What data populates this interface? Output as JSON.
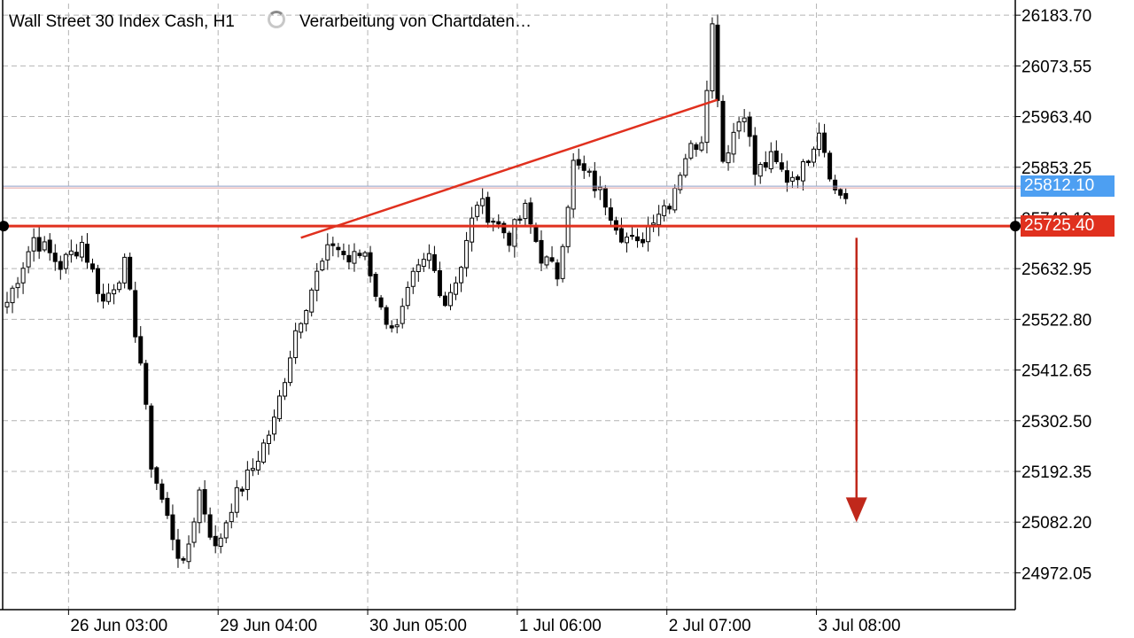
{
  "header": {
    "title": "Wall Street 30 Index Cash, H1",
    "status": "Verarbeitung von Chartdaten…",
    "spinner_icon": "loading-spinner-icon"
  },
  "chart_data": {
    "type": "candlestick",
    "symbol": "Wall Street 30 Index Cash",
    "timeframe": "H1",
    "y_ticks": [
      "26183.70",
      "26073.55",
      "25963.40",
      "25853.25",
      "25743.10",
      "25632.95",
      "25522.80",
      "25412.65",
      "25302.50",
      "25192.35",
      "25082.20",
      "24972.05"
    ],
    "ylim": [
      24892,
      26209
    ],
    "x_ticks": [
      "26 Jun 03:00",
      "29 Jun 04:00",
      "30 Jun 05:00",
      "1 Jul 06:00",
      "2 Jul 07:00",
      "3 Jul 08:00"
    ],
    "x_tick_bar_index": [
      12,
      40,
      68,
      96,
      124,
      152
    ],
    "bar_count": 158,
    "current_price": {
      "label": "25812.10",
      "value": 25812.1,
      "color": "#4d9ff2"
    },
    "horizontal_level": {
      "label": "25725.40",
      "value": 25725.4,
      "color": "#e0301e"
    },
    "trendline": {
      "from": {
        "bar": 55,
        "price": 25700
      },
      "to": {
        "bar": 133,
        "price": 26000
      },
      "color": "#e0301e"
    },
    "projection_arrow": {
      "bar": 159,
      "from": 25700,
      "to": 25082,
      "color": "#c0281b"
    },
    "anchors": [
      {
        "t": 0,
        "p": 25560
      },
      {
        "t": 5,
        "p": 25700
      },
      {
        "t": 10,
        "p": 25640
      },
      {
        "t": 14,
        "p": 25690
      },
      {
        "t": 18,
        "p": 25560
      },
      {
        "t": 22,
        "p": 25640
      },
      {
        "t": 25,
        "p": 25430
      },
      {
        "t": 27,
        "p": 25210
      },
      {
        "t": 30,
        "p": 25090
      },
      {
        "t": 33,
        "p": 24980
      },
      {
        "t": 36,
        "p": 25150
      },
      {
        "t": 39,
        "p": 25020
      },
      {
        "t": 42,
        "p": 25120
      },
      {
        "t": 46,
        "p": 25200
      },
      {
        "t": 50,
        "p": 25300
      },
      {
        "t": 54,
        "p": 25500
      },
      {
        "t": 58,
        "p": 25620
      },
      {
        "t": 61,
        "p": 25690
      },
      {
        "t": 64,
        "p": 25650
      },
      {
        "t": 67,
        "p": 25670
      },
      {
        "t": 70,
        "p": 25540
      },
      {
        "t": 73,
        "p": 25500
      },
      {
        "t": 76,
        "p": 25610
      },
      {
        "t": 79,
        "p": 25660
      },
      {
        "t": 82,
        "p": 25560
      },
      {
        "t": 85,
        "p": 25640
      },
      {
        "t": 88,
        "p": 25780
      },
      {
        "t": 91,
        "p": 25740
      },
      {
        "t": 94,
        "p": 25700
      },
      {
        "t": 97,
        "p": 25760
      },
      {
        "t": 100,
        "p": 25660
      },
      {
        "t": 103,
        "p": 25620
      },
      {
        "t": 106,
        "p": 25860
      },
      {
        "t": 109,
        "p": 25830
      },
      {
        "t": 112,
        "p": 25780
      },
      {
        "t": 115,
        "p": 25710
      },
      {
        "t": 118,
        "p": 25680
      },
      {
        "t": 121,
        "p": 25750
      },
      {
        "t": 124,
        "p": 25780
      },
      {
        "t": 127,
        "p": 25880
      },
      {
        "t": 130,
        "p": 25920
      },
      {
        "t": 132,
        "p": 26160
      },
      {
        "t": 134,
        "p": 25870
      },
      {
        "t": 136,
        "p": 25930
      },
      {
        "t": 138,
        "p": 25980
      },
      {
        "t": 140,
        "p": 25840
      },
      {
        "t": 143,
        "p": 25870
      },
      {
        "t": 146,
        "p": 25830
      },
      {
        "t": 149,
        "p": 25850
      },
      {
        "t": 152,
        "p": 25940
      },
      {
        "t": 155,
        "p": 25800
      },
      {
        "t": 157,
        "p": 25790
      },
      {
        "t": 158,
        "p": 25812
      }
    ],
    "colors": {
      "bull": "#ffffff",
      "bear": "#000000",
      "wick": "#000000",
      "grid": "#b4b4b4",
      "axis": "#000000"
    }
  }
}
